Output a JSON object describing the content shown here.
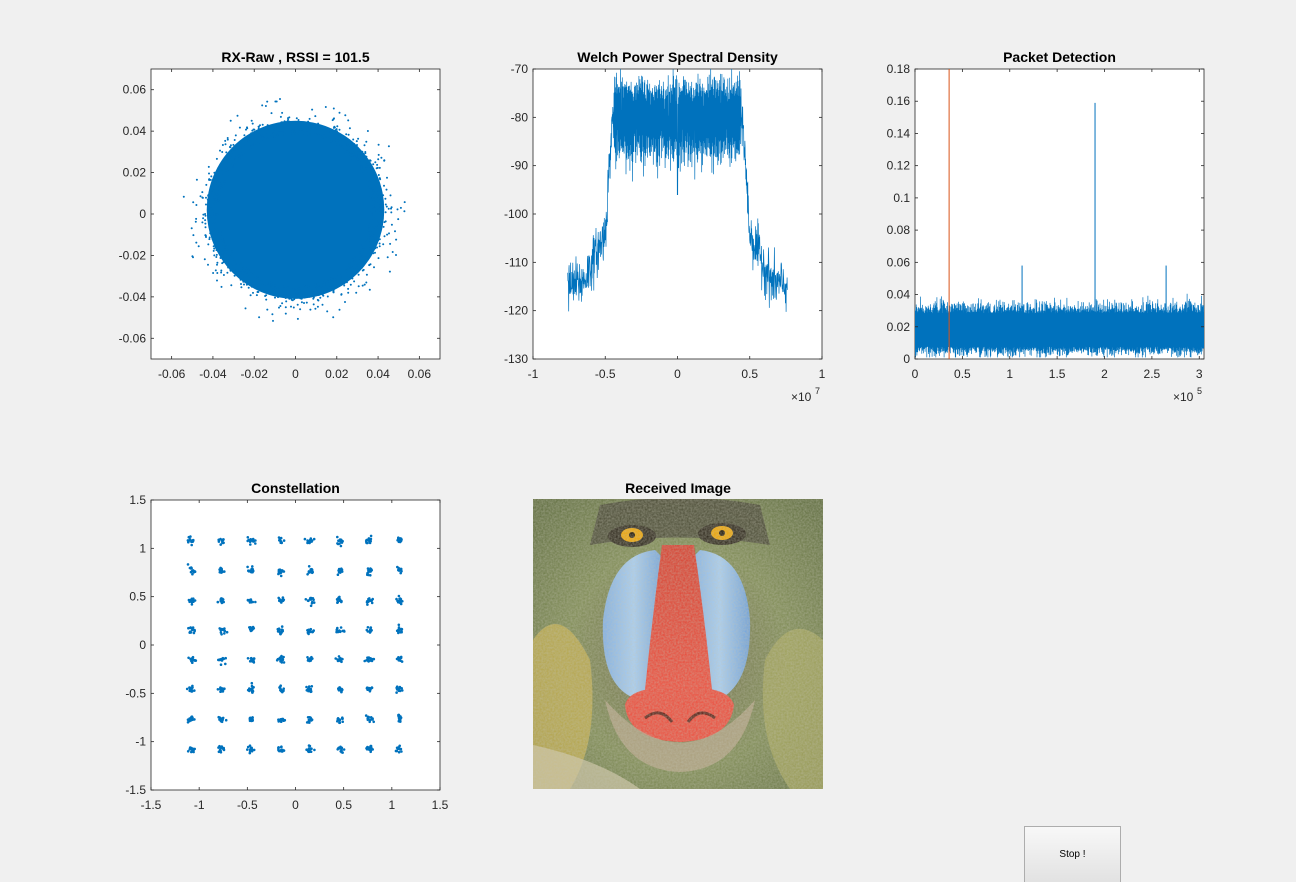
{
  "chart_data": [
    {
      "type": "scatter",
      "title": "RX-Raw , RSSI = 101.5",
      "xlim": [
        -0.07,
        0.07
      ],
      "ylim": [
        -0.07,
        0.07
      ],
      "xticks": [
        -0.06,
        -0.04,
        -0.02,
        0,
        0.02,
        0.04,
        0.06
      ],
      "xtick_labels": [
        "-0.06",
        "-0.04",
        "-0.02",
        "0",
        "0.02",
        "0.04",
        "0.06"
      ],
      "yticks": [
        -0.06,
        -0.04,
        -0.02,
        0,
        0.02,
        0.04,
        0.06
      ],
      "ytick_labels": [
        "-0.06",
        "-0.04",
        "-0.02",
        "0",
        "0.02",
        "0.04",
        "0.06"
      ],
      "cloud": {
        "center": [
          0,
          0.002
        ],
        "radius": 0.043,
        "outer_radius": 0.055
      },
      "color": "#0072bd"
    },
    {
      "type": "line",
      "title": "Welch Power Spectral Density",
      "xlim": [
        -1,
        1
      ],
      "ylim": [
        -130,
        -70
      ],
      "xticks": [
        -1,
        -0.5,
        0,
        0.5,
        1
      ],
      "xtick_labels": [
        "-1",
        "-0.5",
        "0",
        "0.5",
        "1"
      ],
      "yticks": [
        -130,
        -120,
        -110,
        -100,
        -90,
        -80,
        -70
      ],
      "ytick_labels": [
        "-130",
        "-120",
        "-110",
        "-100",
        "-90",
        "-80",
        "-70"
      ],
      "x_exponent": {
        "base": "×10",
        "power": "7"
      },
      "profile": {
        "x": [
          -0.76,
          -0.65,
          -0.5,
          -0.45,
          0.45,
          0.5,
          0.65,
          0.76
        ],
        "y": [
          -115,
          -114,
          -104,
          -80,
          -80,
          -104,
          -114,
          -115
        ]
      },
      "band_noise": {
        "top": -74,
        "bottom": -87
      },
      "center_dip": -96,
      "color": "#0072bd"
    },
    {
      "type": "line",
      "title": "Packet Detection",
      "xlim": [
        0,
        3.05
      ],
      "ylim": [
        0,
        0.18
      ],
      "xticks": [
        0,
        0.5,
        1,
        1.5,
        2,
        2.5,
        3
      ],
      "xtick_labels": [
        "0",
        "0.5",
        "1",
        "1.5",
        "2",
        "2.5",
        "3"
      ],
      "yticks": [
        0,
        0.02,
        0.04,
        0.06,
        0.08,
        0.1,
        0.12,
        0.14,
        0.16,
        0.18
      ],
      "ytick_labels": [
        "0",
        "0.02",
        "0.04",
        "0.06",
        "0.08",
        "0.1",
        "0.12",
        "0.14",
        "0.16",
        "0.18"
      ],
      "x_exponent": {
        "base": "×10",
        "power": "5"
      },
      "noise": {
        "mean": 0.018,
        "spread": 0.013
      },
      "peaks": [
        {
          "x": 1.13,
          "y": 0.058
        },
        {
          "x": 1.9,
          "y": 0.159
        },
        {
          "x": 2.65,
          "y": 0.058
        }
      ],
      "threshold_x": 0.36,
      "color": "#0072bd",
      "threshold_color": "#d95319"
    },
    {
      "type": "scatter",
      "title": "Constellation",
      "xlim": [
        -1.5,
        1.5
      ],
      "ylim": [
        -1.5,
        1.5
      ],
      "xticks": [
        -1.5,
        -1,
        -0.5,
        0,
        0.5,
        1,
        1.5
      ],
      "xtick_labels": [
        "-1.5",
        "-1",
        "-0.5",
        "0",
        "0.5",
        "1",
        "1.5"
      ],
      "yticks": [
        -1.5,
        -1,
        -0.5,
        0,
        0.5,
        1,
        1.5
      ],
      "ytick_labels": [
        "-1.5",
        "-1",
        "-0.5",
        "0",
        "0.5",
        "1",
        "1.5"
      ],
      "levels": [
        -1.08,
        -0.77,
        -0.46,
        -0.15,
        0.15,
        0.46,
        0.77,
        1.08
      ],
      "color": "#0072bd"
    }
  ],
  "image_panel": {
    "title": "Received Image",
    "subject": "mandrill-face"
  },
  "stop_button": {
    "label": "Stop !"
  }
}
